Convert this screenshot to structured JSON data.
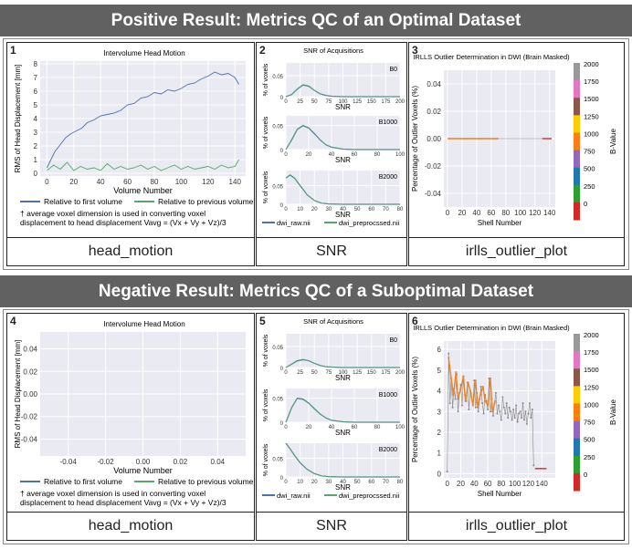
{
  "positive": {
    "banner": "Positive Result: Metrics QC of an Optimal Dataset",
    "panels": {
      "hm": {
        "num": "1",
        "caption": "head_motion",
        "title": "Intervolume Head Motion",
        "ylabel": "RMS of Head Displacement [mm]",
        "xlabel": "Volume Number",
        "legend1": "Relative to first volume",
        "legend2": "Relative to previous volume",
        "note1": "† average voxel dimension is used in converting voxel",
        "note2": "displacement to head displacement Vavg = (Vx + Vy + Vz)/3"
      },
      "snr": {
        "num": "2",
        "caption": "SNR",
        "title": "SNR of Acquisitions",
        "ylabel": "% of voxels",
        "xlabel": "SNR",
        "b0": "B0",
        "b1000": "B1000",
        "b2000": "B2000",
        "legend1": "dwi_raw.nii",
        "legend2": "dwi_preprocssed.nii"
      },
      "irl": {
        "num": "3",
        "caption": "irlls_outlier_plot",
        "title": "IRLLS Outlier Determination in DWI (Brain Masked)",
        "ylabel": "Percentage of Outlier Voxels (%)",
        "xlabel": "Shell Number",
        "cbar_label": "B-Value"
      }
    }
  },
  "negative": {
    "banner": "Negative Result: Metrics QC of a Suboptimal Dataset",
    "panels": {
      "hm": {
        "num": "4",
        "caption": "head_motion",
        "title": "Intervolume Head Motion",
        "ylabel": "RMS of Head Displacement [mm]",
        "xlabel": "Volume Number",
        "legend1": "Relative to first volume",
        "legend2": "Relative to previous volume",
        "note1": "† average voxel dimension is used in converting voxel",
        "note2": "displacement to head displacement Vavg = (Vx + Vy + Vz)/3"
      },
      "snr": {
        "num": "5",
        "caption": "SNR",
        "title": "SNR of Acquisitions",
        "ylabel": "% of voxels",
        "xlabel": "SNR",
        "b0": "B0",
        "b1000": "B1000",
        "b2000": "B2000",
        "legend1": "dwi_raw.nii",
        "legend2": "dwi_preprocssed.nii"
      },
      "irl": {
        "num": "6",
        "caption": "irlls_outlier_plot",
        "title": "IRLLS Outlier Determination in DWI (Brain Masked)",
        "ylabel": "Percentage of Outlier Voxels (%)",
        "xlabel": "Shell Number",
        "cbar_label": "B-Value"
      }
    }
  },
  "colors": {
    "blue": "#4c72b0",
    "green": "#55a868",
    "grey": "#888888",
    "orange": "#e8832e",
    "red": "#d62728",
    "plot_bg": "#eaeaf2"
  },
  "colorbar": {
    "ticks": [
      "2000",
      "1750",
      "1500",
      "1250",
      "1000",
      "750",
      "500",
      "250",
      "0"
    ],
    "segments": [
      "#999999",
      "#e377c2",
      "#8c564b",
      "#ffcc00",
      "#ff7f0e",
      "#9467bd",
      "#1f77b4",
      "#2ca02c",
      "#d62728"
    ]
  },
  "chart_data": [
    {
      "type": "line",
      "panel": "1",
      "title": "Intervolume Head Motion",
      "xlabel": "Volume Number",
      "ylabel": "RMS of Head Displacement [mm]",
      "xlim": [
        -5,
        148
      ],
      "ylim": [
        -0.2,
        8.2
      ],
      "xticks": [
        0,
        20,
        40,
        60,
        80,
        100,
        120,
        140
      ],
      "yticks": [
        0,
        1,
        2,
        3,
        4,
        5,
        6,
        7,
        8
      ],
      "series": [
        {
          "name": "Relative to first volume",
          "x": [
            0,
            3,
            6,
            10,
            14,
            18,
            22,
            26,
            30,
            35,
            40,
            45,
            50,
            55,
            60,
            65,
            70,
            75,
            80,
            85,
            90,
            95,
            100,
            105,
            110,
            115,
            120,
            125,
            130,
            135,
            140,
            143
          ],
          "y": [
            0.4,
            1.0,
            1.6,
            2.1,
            2.6,
            2.9,
            3.1,
            3.3,
            3.7,
            3.9,
            4.2,
            4.3,
            4.4,
            4.6,
            5.0,
            5.1,
            5.5,
            5.6,
            5.9,
            5.8,
            6.1,
            6.0,
            6.2,
            6.5,
            6.6,
            6.9,
            7.1,
            7.4,
            7.2,
            7.3,
            7.0,
            6.5
          ]
        },
        {
          "name": "Relative to previous volume",
          "x": [
            0,
            5,
            10,
            15,
            20,
            25,
            30,
            35,
            40,
            45,
            50,
            55,
            60,
            65,
            70,
            75,
            80,
            85,
            90,
            95,
            100,
            105,
            110,
            115,
            120,
            125,
            130,
            135,
            140,
            143
          ],
          "y": [
            0.2,
            0.6,
            0.3,
            0.8,
            0.2,
            0.5,
            0.3,
            0.4,
            0.2,
            0.7,
            0.3,
            0.5,
            0.3,
            0.4,
            0.6,
            0.3,
            0.5,
            0.2,
            0.4,
            0.6,
            0.3,
            0.5,
            0.3,
            0.4,
            0.5,
            0.3,
            0.6,
            0.4,
            0.5,
            1.0
          ]
        }
      ]
    },
    {
      "type": "line",
      "panel": "2-B0",
      "xlim": [
        0,
        200
      ],
      "ylim": [
        0,
        0.08
      ],
      "xticks": [
        0,
        25,
        50,
        75,
        100,
        125,
        150,
        175,
        200
      ],
      "yticks": [
        0,
        0.05
      ],
      "series": [
        {
          "name": "dwi_raw.nii",
          "x": [
            0,
            10,
            20,
            30,
            40,
            50,
            60,
            70,
            80,
            100,
            200
          ],
          "y": [
            0,
            0.005,
            0.018,
            0.028,
            0.025,
            0.015,
            0.007,
            0.003,
            0.001,
            0,
            0
          ]
        },
        {
          "name": "dwi_preprocssed.nii",
          "x": [
            0,
            10,
            20,
            30,
            40,
            50,
            60,
            70,
            80,
            100,
            200
          ],
          "y": [
            0,
            0.005,
            0.017,
            0.027,
            0.024,
            0.015,
            0.007,
            0.003,
            0.001,
            0,
            0
          ]
        }
      ]
    },
    {
      "type": "line",
      "panel": "2-B1000",
      "xlim": [
        0,
        100
      ],
      "ylim": [
        0,
        0.07
      ],
      "xticks": [
        0,
        20,
        40,
        60,
        80,
        100
      ],
      "yticks": [
        0,
        0.05
      ],
      "series": [
        {
          "name": "dwi_raw.nii",
          "x": [
            0,
            5,
            10,
            15,
            20,
            25,
            30,
            35,
            40,
            50,
            60,
            100
          ],
          "y": [
            0,
            0.02,
            0.042,
            0.05,
            0.045,
            0.033,
            0.02,
            0.01,
            0.005,
            0.001,
            0,
            0
          ]
        },
        {
          "name": "dwi_preprocssed.nii",
          "x": [
            0,
            5,
            10,
            15,
            20,
            25,
            30,
            35,
            40,
            50,
            60,
            100
          ],
          "y": [
            0,
            0.019,
            0.041,
            0.049,
            0.044,
            0.032,
            0.02,
            0.01,
            0.005,
            0.001,
            0,
            0
          ]
        }
      ]
    },
    {
      "type": "line",
      "panel": "2-B2000",
      "xlim": [
        0,
        80
      ],
      "ylim": [
        0,
        0.09
      ],
      "xticks": [
        0,
        10,
        20,
        30,
        40,
        50,
        60,
        70,
        80
      ],
      "yticks": [
        0,
        0.05
      ],
      "series": [
        {
          "name": "dwi_raw.nii",
          "x": [
            0,
            3,
            6,
            10,
            15,
            20,
            25,
            30,
            40,
            80
          ],
          "y": [
            0.07,
            0.078,
            0.07,
            0.05,
            0.025,
            0.01,
            0.003,
            0.001,
            0,
            0
          ]
        },
        {
          "name": "dwi_preprocssed.nii",
          "x": [
            0,
            3,
            6,
            10,
            15,
            20,
            25,
            30,
            40,
            80
          ],
          "y": [
            0.07,
            0.077,
            0.069,
            0.049,
            0.025,
            0.01,
            0.003,
            0.001,
            0,
            0
          ]
        }
      ]
    },
    {
      "type": "line",
      "panel": "3",
      "title": "IRLLS Outlier Determination in DWI (Brain Masked)",
      "xlabel": "Shell Number",
      "ylabel": "Percentage of Outlier Voxels (%)",
      "xlim": [
        -5,
        148
      ],
      "ylim": [
        -0.05,
        0.05
      ],
      "xticks": [
        0,
        20,
        40,
        60,
        80,
        100,
        120,
        140
      ],
      "yticks": [
        -0.04,
        -0.02,
        0.0,
        0.02,
        0.04
      ],
      "series": [
        {
          "x": [
            0,
            70
          ],
          "y": [
            0,
            0
          ],
          "color": "orange"
        },
        {
          "x": [
            70,
            130
          ],
          "y": [
            0,
            0
          ],
          "color": "grey"
        },
        {
          "x": [
            130,
            143
          ],
          "y": [
            0,
            0
          ],
          "color": "red"
        }
      ]
    },
    {
      "type": "line",
      "panel": "4",
      "title": "Intervolume Head Motion",
      "xlabel": "Volume Number",
      "ylabel": "RMS of Head Displacement [mm]",
      "xlim": [
        -0.055,
        0.055
      ],
      "ylim": [
        -0.055,
        0.055
      ],
      "xticks": [
        -0.04,
        -0.02,
        0.0,
        0.02,
        0.04
      ],
      "yticks": [
        -0.04,
        -0.02,
        0.0,
        0.02,
        0.04
      ],
      "series": []
    },
    {
      "type": "line",
      "panel": "5-B0",
      "xlim": [
        0,
        200
      ],
      "ylim": [
        0,
        0.08
      ],
      "xticks": [
        0,
        25,
        50,
        75,
        100,
        125,
        150,
        175,
        200
      ],
      "yticks": [
        0,
        0.05
      ],
      "series": [
        {
          "name": "dwi_raw.nii",
          "x": [
            0,
            10,
            20,
            30,
            40,
            50,
            60,
            70,
            80,
            100,
            200
          ],
          "y": [
            0,
            0.008,
            0.016,
            0.019,
            0.016,
            0.01,
            0.005,
            0.002,
            0.001,
            0,
            0
          ]
        },
        {
          "name": "dwi_preprocssed.nii",
          "x": [
            0,
            10,
            20,
            30,
            40,
            50,
            60,
            70,
            80,
            100,
            200
          ],
          "y": [
            0,
            0.008,
            0.015,
            0.018,
            0.016,
            0.01,
            0.005,
            0.002,
            0.001,
            0,
            0
          ]
        }
      ]
    },
    {
      "type": "line",
      "panel": "5-B1000",
      "xlim": [
        0,
        100
      ],
      "ylim": [
        0,
        0.07
      ],
      "xticks": [
        0,
        20,
        40,
        60,
        80,
        100
      ],
      "yticks": [
        0,
        0.05
      ],
      "series": [
        {
          "name": "dwi_raw.nii",
          "x": [
            0,
            5,
            10,
            15,
            20,
            25,
            30,
            35,
            40,
            50,
            60,
            100
          ],
          "y": [
            0,
            0.03,
            0.05,
            0.048,
            0.04,
            0.028,
            0.017,
            0.009,
            0.004,
            0.001,
            0,
            0
          ]
        },
        {
          "name": "dwi_preprocssed.nii",
          "x": [
            0,
            5,
            10,
            15,
            20,
            25,
            30,
            35,
            40,
            50,
            60,
            100
          ],
          "y": [
            0,
            0.029,
            0.049,
            0.047,
            0.039,
            0.027,
            0.017,
            0.009,
            0.004,
            0.001,
            0,
            0
          ]
        }
      ]
    },
    {
      "type": "line",
      "panel": "5-B2000",
      "xlim": [
        0,
        80
      ],
      "ylim": [
        0,
        0.09
      ],
      "xticks": [
        0,
        10,
        20,
        30,
        40,
        50,
        60,
        70,
        80
      ],
      "yticks": [
        0,
        0.05
      ],
      "series": [
        {
          "name": "dwi_raw.nii",
          "x": [
            0,
            3,
            6,
            10,
            15,
            20,
            25,
            30,
            40,
            80
          ],
          "y": [
            0.09,
            0.075,
            0.058,
            0.038,
            0.02,
            0.009,
            0.003,
            0.001,
            0,
            0
          ]
        },
        {
          "name": "dwi_preprocssed.nii",
          "x": [
            0,
            3,
            6,
            10,
            15,
            20,
            25,
            30,
            40,
            80
          ],
          "y": [
            0.089,
            0.074,
            0.057,
            0.037,
            0.02,
            0.009,
            0.003,
            0.001,
            0,
            0
          ]
        }
      ]
    },
    {
      "type": "line",
      "panel": "6",
      "title": "IRLLS Outlier Determination in DWI (Brain Masked)",
      "xlabel": "Shell Number",
      "ylabel": "Percentage of Outlier Voxels (%)",
      "xlim": [
        -5,
        160
      ],
      "ylim": [
        -0.2,
        6.4
      ],
      "xticks": [
        0,
        20,
        40,
        60,
        80,
        100,
        120,
        140
      ],
      "yticks": [
        0,
        1,
        2,
        3,
        4,
        5,
        6
      ],
      "series": [
        {
          "color": "grey",
          "x": [
            0,
            2,
            4,
            6,
            8,
            10,
            12,
            14,
            16,
            18,
            20,
            22,
            24,
            26,
            28,
            30,
            32,
            34,
            36,
            38,
            40,
            42,
            44,
            46,
            48,
            50,
            52,
            54,
            56,
            58,
            60,
            62,
            64,
            66,
            68,
            70,
            72,
            74,
            76,
            78,
            80,
            82,
            84,
            86,
            88,
            90,
            92,
            94,
            96,
            98,
            100,
            102,
            104,
            106,
            108,
            110,
            112,
            114,
            116,
            118,
            120,
            122,
            124,
            126,
            128
          ],
          "y": [
            0.1,
            5.8,
            3.4,
            4.6,
            3.2,
            4.1,
            3.6,
            4.8,
            3.0,
            3.9,
            4.3,
            3.3,
            4.7,
            3.8,
            3.5,
            4.4,
            3.1,
            4.0,
            3.7,
            3.3,
            4.5,
            3.2,
            3.9,
            3.0,
            3.6,
            4.2,
            3.4,
            2.9,
            3.8,
            3.5,
            3.1,
            4.6,
            3.0,
            3.6,
            2.8,
            3.4,
            3.9,
            2.9,
            3.3,
            3.0,
            2.6,
            3.7,
            3.2,
            2.9,
            3.4,
            2.7,
            3.2,
            3.0,
            2.6,
            3.1,
            2.7,
            3.3,
            2.5,
            2.9,
            3.0,
            2.7,
            3.4,
            2.6,
            3.0,
            2.4,
            2.9,
            3.4,
            2.7,
            3.1,
            0.4
          ]
        },
        {
          "color": "orange",
          "x": [
            2,
            6,
            9,
            13,
            16,
            20,
            24,
            27,
            31,
            35,
            38,
            42,
            45,
            49,
            53,
            56,
            60,
            64,
            67,
            71
          ],
          "y": [
            5.6,
            4.6,
            3.8,
            4.9,
            3.6,
            4.1,
            4.7,
            3.5,
            4.4,
            3.9,
            3.3,
            4.5,
            3.2,
            3.8,
            4.2,
            3.5,
            3.3,
            4.6,
            3.0,
            3.5
          ]
        },
        {
          "color": "red",
          "x": [
            130,
            147
          ],
          "y": [
            0.25,
            0.25
          ]
        }
      ]
    }
  ]
}
